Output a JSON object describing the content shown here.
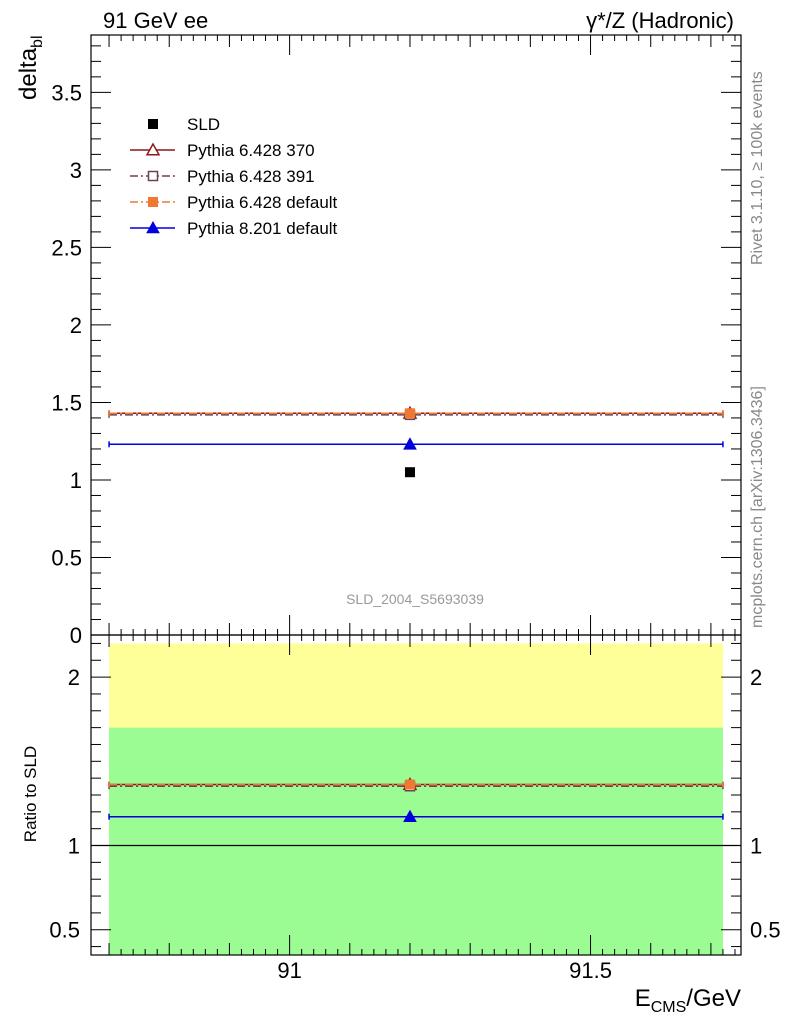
{
  "header": {
    "left": "91 GeV ee",
    "right": "γ*/Z (Hadronic)"
  },
  "side_labels": {
    "rivet": "Rivet 3.1.10, ≥ 100k events",
    "mcplots": "mcplots.cern.ch [arXiv:1306.3436]"
  },
  "analysis_tag": "SLD_2004_S5693039",
  "chart_data": [
    {
      "type": "scatter",
      "panel": "main",
      "ylabel_main": "delta",
      "ylabel_sub": "bl",
      "xlabel_main": "E",
      "xlabel_sub": "CMS",
      "xlabel_unit": "/GeV",
      "xlim": [
        90.67,
        91.75
      ],
      "ylim": [
        0,
        3.87
      ],
      "x_ticks": [
        91,
        91.5
      ],
      "x_tick_labels": [
        "91",
        "91.5"
      ],
      "y_ticks": [
        0,
        0.5,
        1,
        1.5,
        2,
        2.5,
        3,
        3.5
      ],
      "y_tick_labels": [
        "0",
        "0.5",
        "1",
        "1.5",
        "2",
        "2.5",
        "3",
        "3.5"
      ],
      "legend_position": "top-left",
      "data": {
        "name": "SLD",
        "x": 91.2,
        "y": 1.05,
        "color": "#000000"
      },
      "series": [
        {
          "name": "Pythia 6.428 370",
          "x": [
            90.7,
            91.72
          ],
          "center_x": 91.2,
          "y": 1.43,
          "color": "#8b1a1a",
          "marker": "open-triangle",
          "dash": "solid"
        },
        {
          "name": "Pythia 6.428 391",
          "x": [
            90.7,
            91.72
          ],
          "center_x": 91.2,
          "y": 1.42,
          "color": "#6b4250",
          "marker": "open-square",
          "dash": "dashdot"
        },
        {
          "name": "Pythia 6.428 default",
          "x": [
            90.7,
            91.72
          ],
          "center_x": 91.2,
          "y": 1.43,
          "color": "#f07830",
          "marker": "filled-square",
          "dash": "dashdot"
        },
        {
          "name": "Pythia 8.201 default",
          "x": [
            90.7,
            91.72
          ],
          "center_x": 91.2,
          "y": 1.23,
          "color": "#0000dd",
          "marker": "filled-triangle",
          "dash": "solid"
        }
      ]
    },
    {
      "type": "scatter",
      "panel": "ratio",
      "ylabel": "Ratio to SLD",
      "ylim": [
        0.35,
        2.25
      ],
      "y_ticks": [
        0.5,
        1,
        2
      ],
      "y_tick_labels": [
        "0.5",
        "1",
        "2"
      ],
      "bands": [
        {
          "y": [
            0.35,
            2.2
          ],
          "color": "#ffff99"
        },
        {
          "y": [
            0.35,
            1.7
          ],
          "color": "#9cfc94"
        }
      ],
      "reference": 1,
      "series": [
        {
          "name": "Pythia 6.428 370",
          "y": 1.362
        },
        {
          "name": "Pythia 6.428 391",
          "y": 1.352
        },
        {
          "name": "Pythia 6.428 default",
          "y": 1.362
        },
        {
          "name": "Pythia 8.201 default",
          "y": 1.171
        }
      ]
    }
  ]
}
